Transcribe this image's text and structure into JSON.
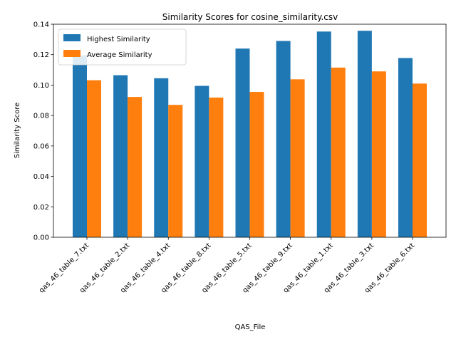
{
  "chart_data": {
    "type": "bar",
    "title": "Similarity Scores for cosine_similarity.csv",
    "xlabel": "QAS_File",
    "ylabel": "Similarity Score",
    "ylim": [
      0,
      0.14
    ],
    "yticks": [
      "0.00",
      "0.02",
      "0.04",
      "0.06",
      "0.08",
      "0.10",
      "0.12",
      "0.14"
    ],
    "yticks_values": [
      0,
      0.02,
      0.04,
      0.06,
      0.08,
      0.1,
      0.12,
      0.14
    ],
    "categories": [
      "qas_46_table_7.txt",
      "qas_46_table_2.txt",
      "qas_46_table_4.txt",
      "qas_46_table_8.txt",
      "qas_46_table_5.txt",
      "qas_46_table_9.txt",
      "qas_46_table_1.txt",
      "qas_46_table_3.txt",
      "qas_46_table_6.txt"
    ],
    "series": [
      {
        "name": "Highest Similarity",
        "color": "#1f77b4",
        "values": [
          0.1195,
          0.1065,
          0.1045,
          0.0995,
          0.124,
          0.129,
          0.1352,
          0.1357,
          0.1178
        ]
      },
      {
        "name": "Average Similarity",
        "color": "#ff7f0e",
        "values": [
          0.1032,
          0.0922,
          0.087,
          0.0918,
          0.0955,
          0.1038,
          0.1115,
          0.109,
          0.101
        ]
      }
    ],
    "legend": "top-left",
    "grid": false
  }
}
